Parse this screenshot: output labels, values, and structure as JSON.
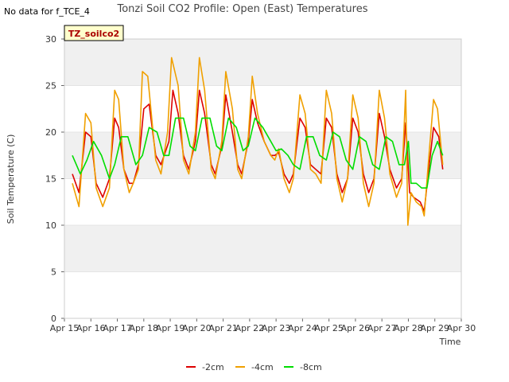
{
  "no_data_note": "No data for f_TCE_4",
  "chart_data": {
    "type": "line",
    "title": "Tonzi Soil CO2 Profile: Open (East) Temperatures",
    "xlabel": "Time",
    "ylabel": "Soil Temperature (C)",
    "ylim": [
      0,
      30
    ],
    "yticks": [
      0,
      5,
      10,
      15,
      20,
      25,
      30
    ],
    "xlim": [
      15,
      30
    ],
    "xtick_values": [
      15,
      16,
      17,
      18,
      19,
      20,
      21,
      22,
      23,
      24,
      25,
      26,
      27,
      28,
      29,
      30
    ],
    "xtick_labels": [
      "Apr 15",
      "Apr 16",
      "Apr 17",
      "Apr 18",
      "Apr 19",
      "Apr 20",
      "Apr 21",
      "Apr 22",
      "Apr 23",
      "Apr 24",
      "Apr 25",
      "Apr 26",
      "Apr 27",
      "Apr 28",
      "Apr 29",
      "Apr 30"
    ],
    "grid": "horizontal bands",
    "legend_position": "bottom-center",
    "annotation_box": "TZ_soilco2",
    "series": [
      {
        "name": "-2cm",
        "color": "#dd0000",
        "x": [
          15.3,
          15.55,
          15.8,
          16.0,
          16.2,
          16.45,
          16.7,
          16.9,
          17.05,
          17.25,
          17.45,
          17.6,
          17.8,
          18.0,
          18.2,
          18.45,
          18.65,
          18.95,
          19.1,
          19.3,
          19.5,
          19.7,
          19.95,
          20.1,
          20.3,
          20.55,
          20.7,
          20.95,
          21.1,
          21.35,
          21.55,
          21.7,
          21.95,
          22.1,
          22.3,
          22.55,
          22.8,
          22.95,
          23.1,
          23.3,
          23.5,
          23.65,
          23.9,
          24.1,
          24.3,
          24.5,
          24.7,
          24.9,
          25.1,
          25.3,
          25.5,
          25.7,
          25.9,
          26.1,
          26.3,
          26.5,
          26.7,
          26.9,
          27.1,
          27.3,
          27.55,
          27.75,
          27.9,
          28.05,
          28.2,
          28.45,
          28.6,
          28.75,
          28.95,
          29.15,
          29.3
        ],
        "values": [
          15.5,
          13.5,
          20.0,
          19.5,
          14.5,
          13.0,
          15.0,
          21.5,
          20.5,
          16.0,
          14.5,
          14.5,
          16.5,
          22.5,
          23.0,
          17.5,
          16.5,
          19.0,
          24.5,
          22.0,
          17.5,
          16.0,
          19.0,
          24.5,
          22.0,
          16.5,
          15.5,
          18.5,
          24.0,
          20.0,
          16.5,
          15.5,
          19.0,
          23.5,
          21.0,
          19.0,
          17.5,
          17.5,
          17.8,
          15.5,
          14.5,
          15.5,
          21.5,
          20.5,
          16.5,
          16.0,
          15.5,
          21.5,
          20.5,
          15.5,
          13.5,
          15.0,
          21.5,
          20.0,
          15.5,
          13.5,
          15.0,
          22.0,
          19.5,
          16.0,
          14.0,
          15.0,
          21.0,
          13.5,
          13.0,
          12.5,
          11.5,
          15.5,
          20.5,
          19.5,
          16.0
        ]
      },
      {
        "name": "-4cm",
        "color": "#f0a000",
        "x": [
          15.3,
          15.55,
          15.8,
          16.0,
          16.2,
          16.45,
          16.7,
          16.9,
          17.05,
          17.25,
          17.45,
          17.6,
          17.8,
          17.95,
          18.15,
          18.45,
          18.65,
          18.9,
          19.05,
          19.3,
          19.5,
          19.7,
          19.95,
          20.1,
          20.3,
          20.55,
          20.7,
          20.95,
          21.1,
          21.35,
          21.55,
          21.7,
          21.95,
          22.1,
          22.3,
          22.55,
          22.8,
          22.95,
          23.1,
          23.3,
          23.5,
          23.65,
          23.9,
          24.1,
          24.3,
          24.5,
          24.7,
          24.9,
          25.1,
          25.3,
          25.5,
          25.7,
          25.9,
          26.1,
          26.3,
          26.5,
          26.7,
          26.9,
          27.1,
          27.3,
          27.55,
          27.75,
          27.9,
          27.98,
          28.1,
          28.3,
          28.5,
          28.6,
          28.75,
          28.95,
          29.1,
          29.3
        ],
        "values": [
          14.5,
          12.0,
          22.0,
          21.0,
          14.0,
          12.0,
          14.0,
          24.5,
          23.5,
          16.0,
          13.5,
          14.5,
          16.0,
          26.5,
          26.0,
          17.0,
          15.5,
          20.0,
          28.0,
          25.0,
          17.0,
          15.5,
          20.0,
          28.0,
          24.5,
          16.0,
          15.0,
          19.0,
          26.5,
          22.5,
          16.0,
          15.0,
          19.5,
          26.0,
          22.0,
          19.0,
          17.5,
          17.0,
          18.2,
          15.0,
          13.5,
          15.0,
          24.0,
          22.0,
          16.0,
          15.5,
          14.5,
          24.5,
          22.0,
          15.0,
          12.5,
          15.0,
          24.0,
          21.5,
          14.5,
          12.0,
          14.5,
          24.5,
          21.5,
          15.5,
          13.0,
          14.5,
          24.5,
          10.0,
          13.5,
          12.5,
          12.0,
          11.0,
          16.5,
          23.5,
          22.5,
          16.5
        ]
      },
      {
        "name": "-8cm",
        "color": "#00dd00",
        "x": [
          15.3,
          15.6,
          15.85,
          16.1,
          16.4,
          16.7,
          16.9,
          17.15,
          17.4,
          17.7,
          17.95,
          18.2,
          18.5,
          18.75,
          18.95,
          19.2,
          19.5,
          19.75,
          19.95,
          20.2,
          20.5,
          20.75,
          20.95,
          21.2,
          21.5,
          21.75,
          21.95,
          22.2,
          22.5,
          22.8,
          23.0,
          23.2,
          23.45,
          23.65,
          23.9,
          24.15,
          24.4,
          24.65,
          24.9,
          25.15,
          25.4,
          25.65,
          25.9,
          26.15,
          26.4,
          26.65,
          26.9,
          27.15,
          27.4,
          27.65,
          27.85,
          28.0,
          28.1,
          28.3,
          28.5,
          28.7,
          28.9,
          29.1,
          29.3
        ],
        "values": [
          17.5,
          15.5,
          17.0,
          19.0,
          17.5,
          15.0,
          16.5,
          19.5,
          19.5,
          16.5,
          17.5,
          20.5,
          20.0,
          17.5,
          17.5,
          21.5,
          21.5,
          18.5,
          18.0,
          21.5,
          21.5,
          18.5,
          18.0,
          21.5,
          20.5,
          18.0,
          18.5,
          21.5,
          20.5,
          19.0,
          18.0,
          18.2,
          17.5,
          16.5,
          16.0,
          19.5,
          19.5,
          17.5,
          17.0,
          20.0,
          19.5,
          17.0,
          16.0,
          19.5,
          19.0,
          16.5,
          16.0,
          19.5,
          19.0,
          16.5,
          16.5,
          19.0,
          14.5,
          14.5,
          14.0,
          14.0,
          17.5,
          19.0,
          17.5
        ]
      }
    ]
  }
}
